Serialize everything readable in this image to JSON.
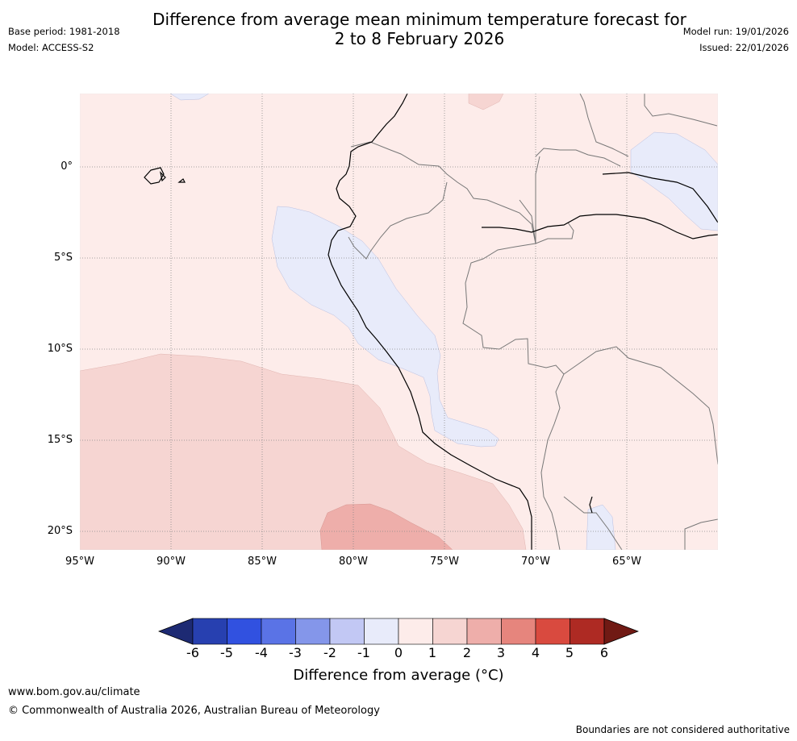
{
  "title": {
    "line1": "Difference from average mean minimum temperature forecast for",
    "line2": "2 to 8 February 2026"
  },
  "meta": {
    "base_period": "Base period: 1981-2018",
    "model": "Model: ACCESS-S2",
    "model_run": "Model run: 19/01/2026",
    "issued": "Issued: 22/01/2026"
  },
  "map": {
    "lat_labels": [
      "0°",
      "5°S",
      "10°S",
      "15°S",
      "20°S"
    ],
    "lon_labels": [
      "95°W",
      "90°W",
      "85°W",
      "80°W",
      "75°W",
      "70°W",
      "65°W"
    ],
    "extent": {
      "lon": [
        -95,
        -60
      ],
      "lat": [
        -21,
        4
      ]
    },
    "anomaly_regions": [
      {
        "name": "background",
        "category": "0 to 1"
      },
      {
        "name": "north-andes-coast",
        "category": "-1 to 0"
      },
      {
        "name": "amazon-northeast",
        "category": "-1 to 0"
      },
      {
        "name": "southeast-pacific-warm",
        "category": "1 to 2"
      },
      {
        "name": "pacific-warm-core",
        "category": "2 to 3"
      }
    ]
  },
  "colorbar": {
    "ticks": [
      "-6",
      "-5",
      "-4",
      "-3",
      "-2",
      "-1",
      "0",
      "1",
      "2",
      "3",
      "4",
      "5",
      "6"
    ],
    "colors": [
      "#1d2a73",
      "#2740b0",
      "#3151e0",
      "#5a73e6",
      "#8496ea",
      "#c2c8f4",
      "#e8ebfa",
      "#fdecea",
      "#f6d5d2",
      "#eeaeaa",
      "#e6857d",
      "#d94a3f",
      "#ae2a23",
      "#701a14"
    ],
    "label": "Difference from average (°C)"
  },
  "footer": {
    "url": "www.bom.gov.au/climate",
    "copyright": "© Commonwealth of Australia 2026, Australian Bureau of Meteorology",
    "note": "Boundaries are not considered authoritative"
  }
}
